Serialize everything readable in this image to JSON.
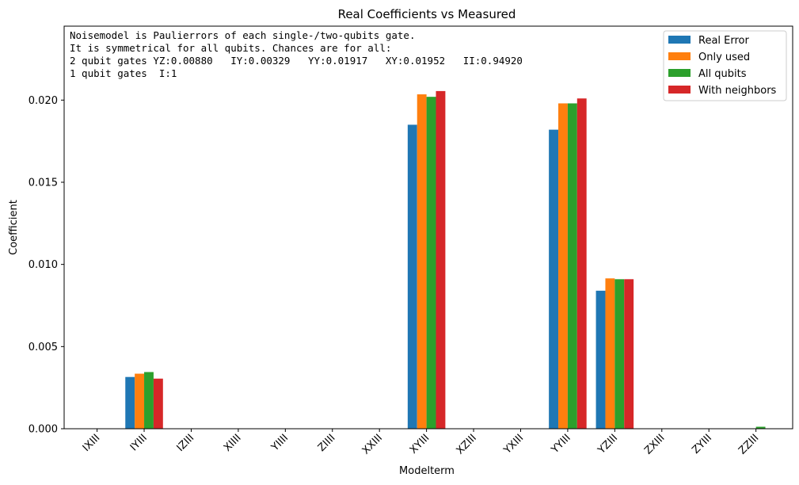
{
  "chart_data": {
    "type": "bar",
    "title": "Real Coefficients vs Measured",
    "xlabel": "Modelterm",
    "ylabel": "Coefficient",
    "ylim": [
      0,
      0.0245
    ],
    "yticks": [
      "0.000",
      "0.005",
      "0.010",
      "0.015",
      "0.020"
    ],
    "ytick_values": [
      0,
      0.005,
      0.01,
      0.015,
      0.02
    ],
    "categories": [
      "IXIII",
      "IYIII",
      "IZIII",
      "XIIII",
      "YIIII",
      "ZIIII",
      "XXIII",
      "XYIII",
      "XZIII",
      "YXIII",
      "YYIII",
      "YZIII",
      "ZXIII",
      "ZYIII",
      "ZZIII"
    ],
    "series": [
      {
        "name": "Real Error",
        "color": "#1f77b4",
        "values": [
          0,
          0.00315,
          0,
          0,
          0,
          0,
          0,
          0.0185,
          0,
          0,
          0.0182,
          0.0084,
          0,
          0,
          0
        ]
      },
      {
        "name": "Only used",
        "color": "#ff7f0e",
        "values": [
          0,
          0.00335,
          0,
          0,
          0,
          0,
          0,
          0.02035,
          0,
          0,
          0.0198,
          0.00915,
          0,
          0,
          0
        ]
      },
      {
        "name": "All qubits",
        "color": "#2ca02c",
        "values": [
          0,
          0.00345,
          0,
          0,
          0,
          0,
          0,
          0.0202,
          0,
          0,
          0.0198,
          0.0091,
          0,
          0,
          0.00012
        ]
      },
      {
        "name": "With neighbors",
        "color": "#d62728",
        "values": [
          0,
          0.00305,
          0,
          0,
          0,
          0,
          0,
          0.02055,
          0,
          0,
          0.0201,
          0.0091,
          0,
          0,
          0
        ]
      }
    ],
    "annotation": [
      "Noisemodel is Paulierrors of each single-/two-qubits gate.",
      "It is symmetrical for all qubits. Chances are for all:",
      "2 qubit gates YZ:0.00880   IY:0.00329   YY:0.01917   XY:0.01952   II:0.94920",
      "1 qubit gates  I:1"
    ],
    "legend_position": "top-right",
    "grid": false
  }
}
